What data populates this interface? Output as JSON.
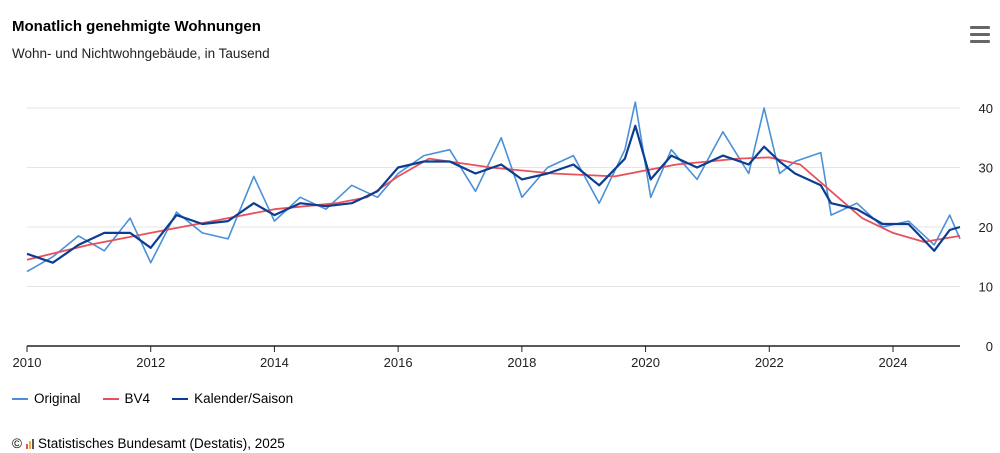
{
  "title": "Monatlich genehmigte Wohnungen",
  "subtitle": "Wohn- und Nichtwohngebäude, in Tausend",
  "menu_icon": "hamburger-menu-icon",
  "legend": [
    {
      "label": "Original",
      "color": "#4a90d9"
    },
    {
      "label": "BV4",
      "color": "#e8505b"
    },
    {
      "label": "Kalender/Saison",
      "color": "#0b3d91"
    }
  ],
  "source": {
    "copyright": "©",
    "icon": "destatis-logo-icon",
    "text": "Statistisches Bundesamt (Destatis), 2025"
  },
  "chart_data": {
    "type": "line",
    "title": "Monatlich genehmigte Wohnungen",
    "subtitle": "Wohn- und Nichtwohngebäude, in Tausend",
    "x_ticks": [
      "2010",
      "2012",
      "2014",
      "2016",
      "2018",
      "2020",
      "2022",
      "2024"
    ],
    "y_ticks": [
      "0",
      "10",
      "20",
      "30",
      "40"
    ],
    "ylim": [
      0,
      40
    ],
    "xlim": [
      "2010-01",
      "2025-02"
    ],
    "grid": true,
    "y_axis_side": "right",
    "legend_position": "bottom-left",
    "series": [
      {
        "name": "Original",
        "color": "#4a90d9",
        "x": [
          "2010-01",
          "2010-06",
          "2010-11",
          "2011-04",
          "2011-09",
          "2012-01",
          "2012-06",
          "2012-11",
          "2013-04",
          "2013-09",
          "2014-01",
          "2014-06",
          "2014-11",
          "2015-04",
          "2015-09",
          "2016-01",
          "2016-06",
          "2016-11",
          "2017-04",
          "2017-09",
          "2018-01",
          "2018-06",
          "2018-11",
          "2019-04",
          "2019-09",
          "2019-11",
          "2020-02",
          "2020-06",
          "2020-11",
          "2021-04",
          "2021-09",
          "2021-12",
          "2022-03",
          "2022-06",
          "2022-11",
          "2023-01",
          "2023-06",
          "2023-11",
          "2024-04",
          "2024-09",
          "2024-12",
          "2025-02"
        ],
        "values": [
          12.5,
          15,
          18.5,
          16,
          21.5,
          14,
          22.5,
          19,
          18,
          28.5,
          21,
          25,
          23,
          27,
          25,
          29,
          32,
          33,
          26,
          35,
          25,
          30,
          32,
          24,
          33,
          41,
          25,
          33,
          28,
          36,
          29,
          40,
          29,
          31,
          32.5,
          22,
          24,
          20,
          21,
          17,
          22,
          18
        ]
      },
      {
        "name": "BV4",
        "color": "#e8505b",
        "x": [
          "2010-01",
          "2011-01",
          "2012-01",
          "2013-01",
          "2014-01",
          "2015-01",
          "2015-07",
          "2016-01",
          "2016-07",
          "2017-07",
          "2018-07",
          "2019-07",
          "2020-07",
          "2021-07",
          "2022-01",
          "2022-07",
          "2023-01",
          "2023-07",
          "2024-01",
          "2024-07",
          "2025-02"
        ],
        "values": [
          14.5,
          17,
          19,
          21,
          23,
          24,
          25,
          28.5,
          31.5,
          30,
          29,
          28.5,
          30.5,
          31.5,
          31.7,
          30.5,
          26,
          21.5,
          19,
          17.5,
          18.5
        ]
      },
      {
        "name": "Kalender/Saison",
        "color": "#0b3d91",
        "x": [
          "2010-01",
          "2010-06",
          "2010-11",
          "2011-04",
          "2011-09",
          "2012-01",
          "2012-06",
          "2012-11",
          "2013-04",
          "2013-09",
          "2014-01",
          "2014-06",
          "2014-11",
          "2015-04",
          "2015-09",
          "2016-01",
          "2016-06",
          "2016-11",
          "2017-04",
          "2017-09",
          "2018-01",
          "2018-06",
          "2018-11",
          "2019-04",
          "2019-09",
          "2019-11",
          "2020-02",
          "2020-06",
          "2020-11",
          "2021-04",
          "2021-09",
          "2021-12",
          "2022-03",
          "2022-06",
          "2022-11",
          "2023-01",
          "2023-06",
          "2023-11",
          "2024-04",
          "2024-09",
          "2024-12",
          "2025-02"
        ],
        "values": [
          15.5,
          14,
          17,
          19,
          19,
          16.5,
          22,
          20.5,
          21,
          24,
          22,
          24,
          23.5,
          24,
          26,
          30,
          31,
          31,
          29,
          30.5,
          28,
          29,
          30.5,
          27,
          31.5,
          37,
          28,
          32,
          30,
          32,
          30.5,
          33.5,
          31,
          29,
          27,
          24,
          23,
          20.5,
          20.5,
          16,
          19.5,
          20
        ]
      }
    ]
  }
}
